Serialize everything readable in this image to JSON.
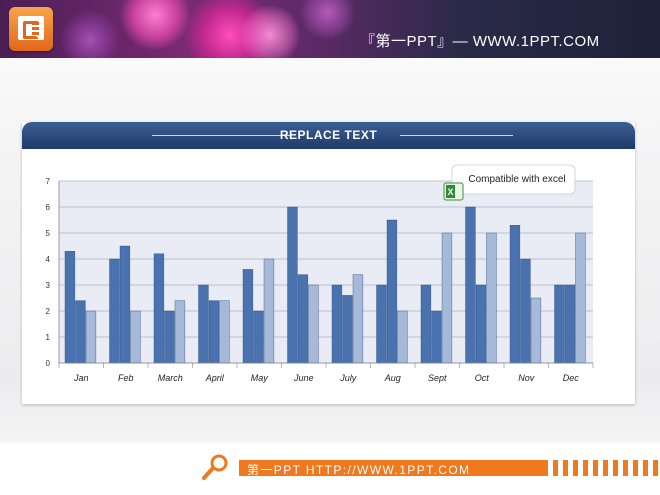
{
  "header": {
    "title": "『第一PPT』— WWW.1PPT.COM",
    "logo_icon": "presentation-logo-icon"
  },
  "panel": {
    "title": "REPLACE TEXT"
  },
  "callout": {
    "text": "Compatible with excel",
    "icon": "excel-icon"
  },
  "colors": {
    "series_dark": "#4a72ae",
    "series_mid": "#4a72ae",
    "series_light": "#a7b9d8",
    "accent": "#f0781e",
    "header_band": "#1e3a68"
  },
  "chart_data": {
    "type": "bar",
    "categories": [
      "Jan",
      "Feb",
      "March",
      "April",
      "May",
      "June",
      "July",
      "Aug",
      "Sept",
      "Oct",
      "Nov",
      "Dec"
    ],
    "series": [
      {
        "values": [
          4.3,
          4.0,
          4.2,
          3.0,
          3.6,
          6.0,
          3.0,
          3.0,
          3.0,
          6.0,
          5.3,
          3.0
        ]
      },
      {
        "values": [
          2.4,
          4.5,
          2.0,
          2.4,
          2.0,
          3.4,
          2.6,
          5.5,
          2.0,
          3.0,
          4.0,
          3.0
        ]
      },
      {
        "values": [
          2.0,
          2.0,
          2.4,
          2.4,
          4.0,
          3.0,
          3.4,
          2.0,
          5.0,
          5.0,
          2.5,
          5.0
        ]
      }
    ],
    "ylim": [
      0,
      7
    ],
    "yticks": [
      "0",
      "1",
      "2",
      "3",
      "4",
      "5",
      "6",
      "7"
    ],
    "grid": true,
    "legend": "none",
    "xlabel": "",
    "ylabel": ""
  },
  "footer": {
    "text": "第一PPT HTTP://WWW.1PPT.COM",
    "icon": "pin-icon"
  }
}
